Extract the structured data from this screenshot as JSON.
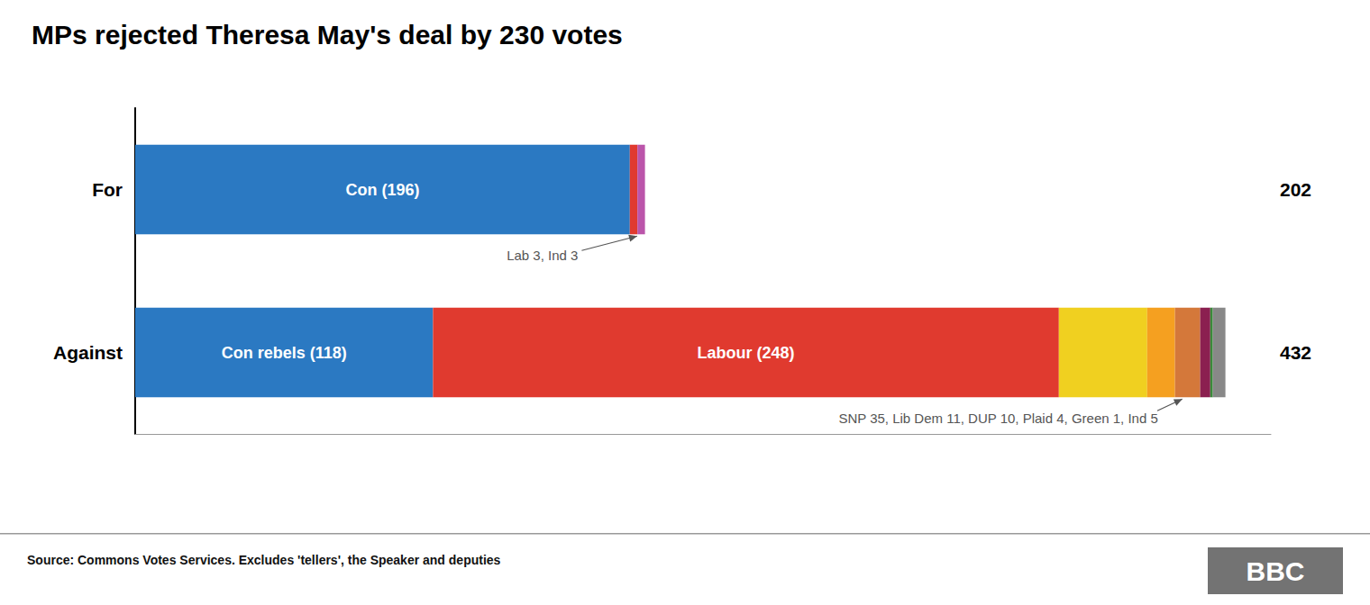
{
  "chart_data": {
    "type": "bar",
    "orientation": "horizontal",
    "stacked": true,
    "title": "MPs rejected Theresa May's deal by 230 votes",
    "categories": [
      "Against",
      "For"
    ],
    "series": [
      {
        "name": "Con",
        "color": "#2B79C2",
        "values": [
          118,
          196
        ],
        "value_labels": [
          "Con rebels (118)",
          "Con (196)"
        ]
      },
      {
        "name": "Lab",
        "color": "#E03A2F",
        "values": [
          248,
          3
        ],
        "value_labels": [
          "Labour (248)",
          null
        ]
      },
      {
        "name": "Ind",
        "color": "#BB55AA",
        "values": [
          null,
          3
        ]
      },
      {
        "name": "SNP",
        "color": "#F0D020",
        "values": [
          35,
          null
        ]
      },
      {
        "name": "Lib Dem",
        "color": "#F5A020",
        "values": [
          11,
          null
        ]
      },
      {
        "name": "DUP",
        "color": "#D4783A",
        "values": [
          10,
          null
        ]
      },
      {
        "name": "Plaid",
        "color": "#8B2050",
        "values": [
          4,
          null
        ]
      },
      {
        "name": "Green",
        "color": "#3A8A3A",
        "values": [
          1,
          null
        ]
      },
      {
        "name": "Ind",
        "color": "#888888",
        "values": [
          5,
          null
        ]
      }
    ],
    "totals": [
      432,
      202
    ],
    "annotations": [
      {
        "text": "Lab 3, Ind 3",
        "category": "For"
      },
      {
        "text": "SNP 35, Lib Dem 11, DUP 10, Plaid 4, Green 1, Ind 5",
        "category": "Against"
      }
    ],
    "source": "Source: Commons Votes Services. Excludes 'tellers', the Speaker and deputies",
    "logo": "BBC",
    "xlim": [
      0,
      450
    ],
    "data_labels": true,
    "tick_labels": "y",
    "grid": false
  }
}
